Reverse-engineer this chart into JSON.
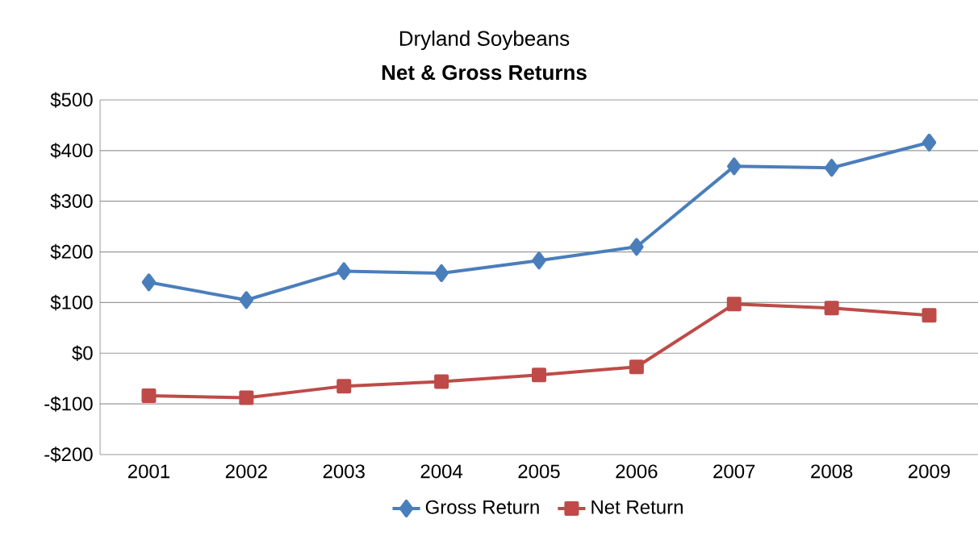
{
  "chart_data": {
    "type": "line",
    "title": "Dryland Soybeans",
    "subtitle": "Net & Gross Returns",
    "categories": [
      "2001",
      "2002",
      "2003",
      "2004",
      "2005",
      "2006",
      "2007",
      "2008",
      "2009"
    ],
    "series": [
      {
        "name": "Gross Return",
        "color": "#4a7ebb",
        "marker": "diamond",
        "values": [
          140,
          105,
          162,
          158,
          183,
          210,
          369,
          366,
          416
        ]
      },
      {
        "name": "Net Return",
        "color": "#be4b48",
        "marker": "square",
        "values": [
          -84,
          -88,
          -65,
          -56,
          -43,
          -27,
          97,
          89,
          75
        ]
      }
    ],
    "ylim": [
      -200,
      500
    ],
    "yticks": [
      {
        "value": -200,
        "label": "-$200"
      },
      {
        "value": -100,
        "label": "-$100"
      },
      {
        "value": 0,
        "label": "$0"
      },
      {
        "value": 100,
        "label": "$100"
      },
      {
        "value": 200,
        "label": "$200"
      },
      {
        "value": 300,
        "label": "$300"
      },
      {
        "value": 400,
        "label": "$400"
      },
      {
        "value": 500,
        "label": "$500"
      }
    ],
    "grid": "y",
    "legend": "bottom",
    "line_style": "solid"
  }
}
